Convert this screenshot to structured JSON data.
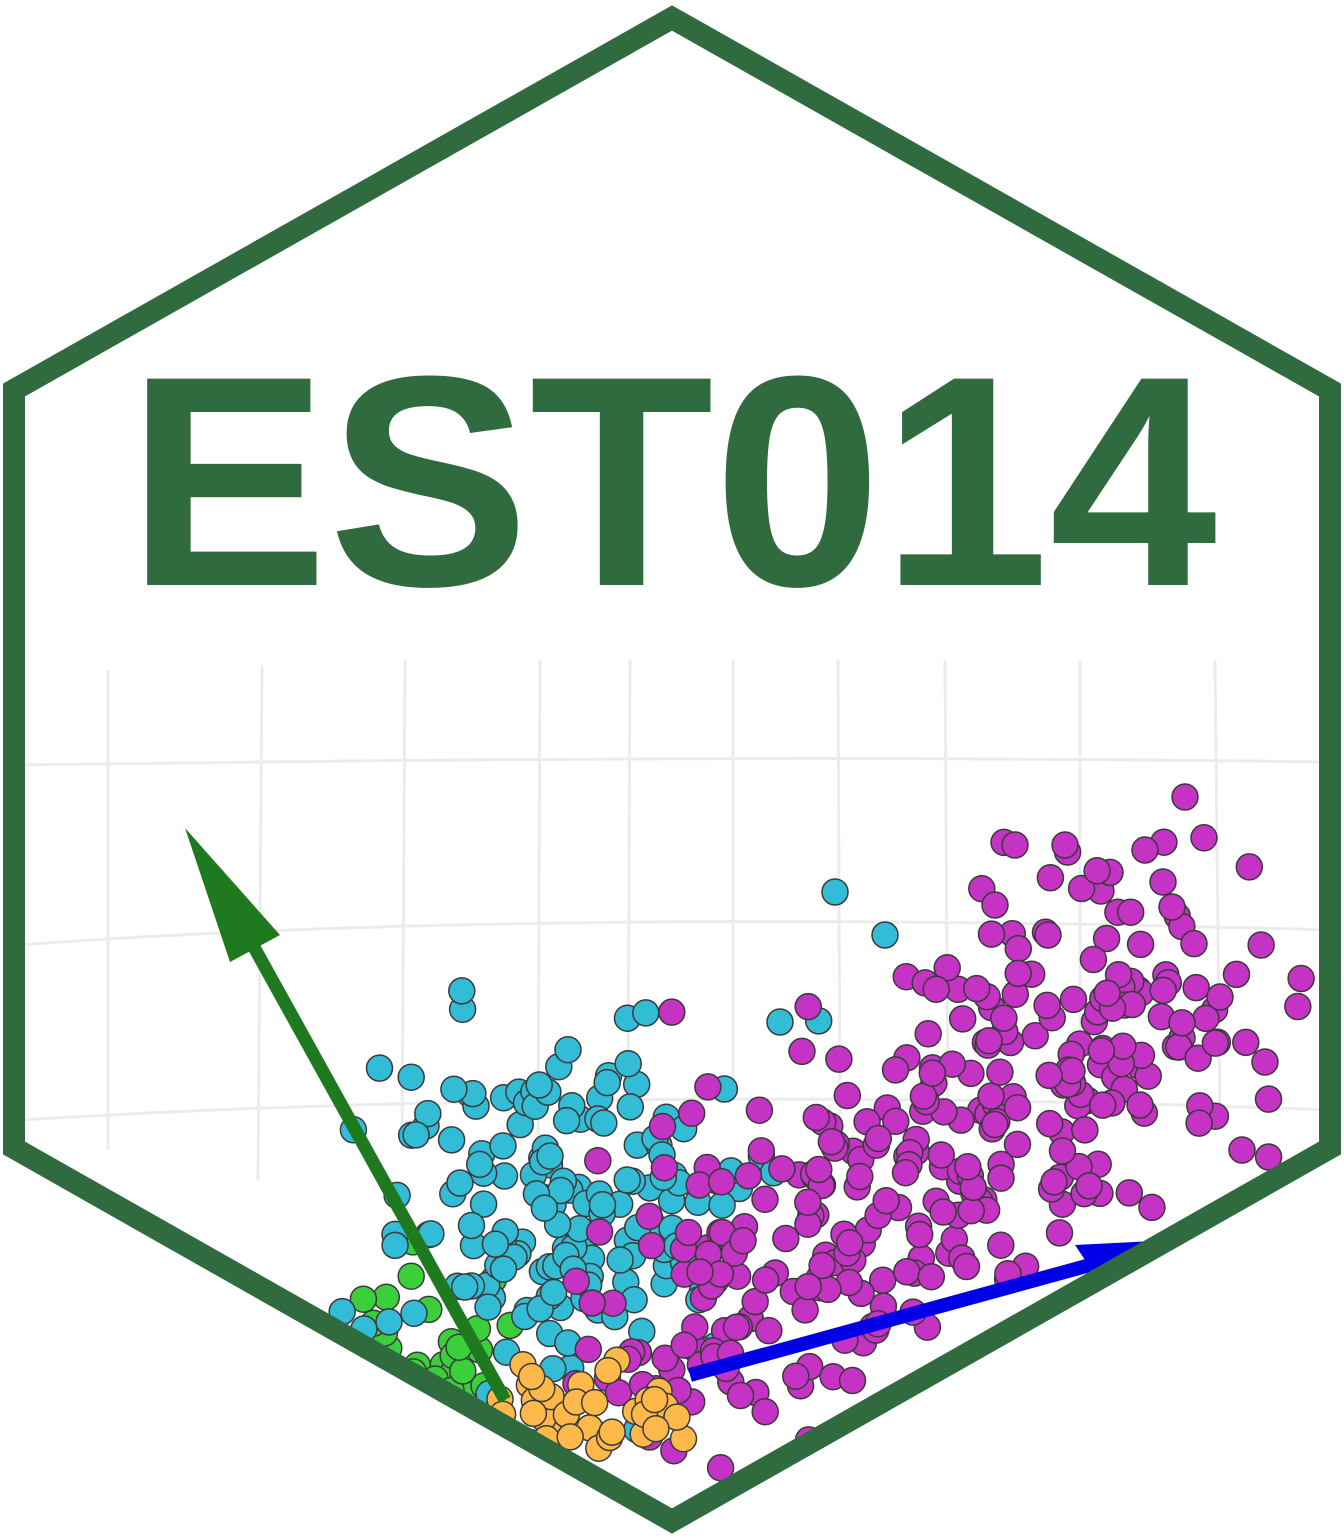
{
  "logo": {
    "title": "EST014",
    "colors": {
      "border": "#2f6b3f",
      "title": "#2f6b3f",
      "green_arrow": "#1f7a1f",
      "blue_arrow": "#0000e6",
      "cluster_cyan": "#33bcd6",
      "cluster_magenta": "#c433c4",
      "cluster_green": "#3ccf3c",
      "cluster_orange": "#ffb84a"
    }
  }
}
